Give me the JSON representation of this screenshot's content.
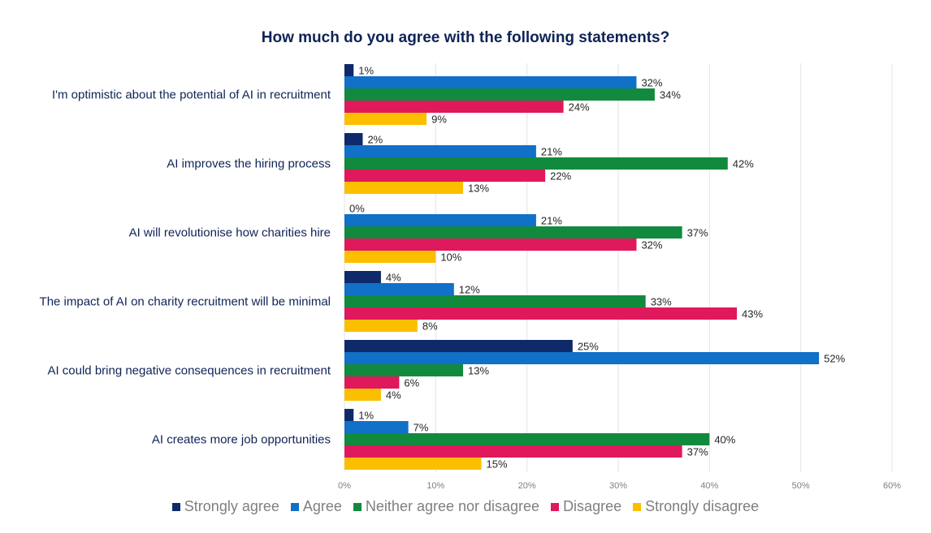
{
  "chart_data": {
    "type": "bar",
    "orientation": "horizontal",
    "title": "How much do you agree with the following statements?",
    "xlabel": "",
    "ylabel": "",
    "xlim": [
      0,
      60
    ],
    "x_ticks": [
      "0%",
      "10%",
      "20%",
      "30%",
      "40%",
      "50%",
      "60%"
    ],
    "grid": "vertical",
    "legend_position": "bottom",
    "categories": [
      "I'm optimistic about the potential of AI in recruitment",
      "AI improves the hiring process",
      "AI will revolutionise how charities hire",
      "The impact of AI on charity recruitment will be minimal",
      "AI could bring negative consequences in recruitment",
      "AI creates more job opportunities"
    ],
    "series": [
      {
        "name": "Strongly agree",
        "color": "#0e2a6b",
        "values": [
          1,
          2,
          0,
          4,
          25,
          1
        ],
        "labels": [
          "1%",
          "2%",
          "0%",
          "4%",
          "25%",
          "1%"
        ]
      },
      {
        "name": "Agree",
        "color": "#1170c8",
        "values": [
          32,
          21,
          21,
          12,
          52,
          7
        ],
        "labels": [
          "32%",
          "21%",
          "21%",
          "12%",
          "52%",
          "7%"
        ]
      },
      {
        "name": "Neither agree nor disagree",
        "color": "#128a3e",
        "values": [
          34,
          42,
          37,
          33,
          13,
          40
        ],
        "labels": [
          "34%",
          "42%",
          "37%",
          "33%",
          "13%",
          "40%"
        ]
      },
      {
        "name": "Disagree",
        "color": "#e0185c",
        "values": [
          24,
          22,
          32,
          43,
          6,
          37
        ],
        "labels": [
          "24%",
          "22%",
          "32%",
          "43%",
          "6%",
          "37%"
        ]
      },
      {
        "name": "Strongly disagree",
        "color": "#fbbf00",
        "values": [
          9,
          13,
          10,
          8,
          4,
          15
        ],
        "labels": [
          "9%",
          "13%",
          "10%",
          "8%",
          "4%",
          "15%"
        ]
      }
    ]
  }
}
